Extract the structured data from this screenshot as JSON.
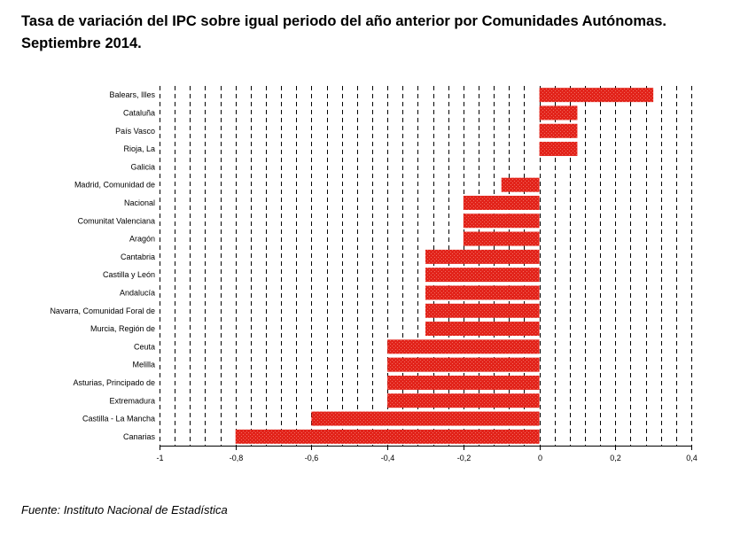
{
  "title_line1": "Tasa de variación del IPC sobre igual periodo del año anterior por Comunidades Autónomas.",
  "title_line2": "Septiembre 2014.",
  "source": "Fuente: Instituto Nacional de Estadística",
  "colors": {
    "bar": "#e2231a",
    "bar_highlight": "#f0695f",
    "grid": "#000000"
  },
  "chart_data": {
    "type": "bar",
    "orientation": "horizontal",
    "categories": [
      "Balears, Illes",
      "Cataluña",
      "País Vasco",
      "Rioja, La",
      "Galicia",
      "Madrid, Comunidad de",
      "Nacional",
      "Comunitat Valenciana",
      "Aragón",
      "Cantabria",
      "Castilla y León",
      "Andalucía",
      "Navarra, Comunidad Foral de",
      "Murcia, Región de",
      "Ceuta",
      "Melilla",
      "Asturias, Principado de",
      "Extremadura",
      "Castilla - La Mancha",
      "Canarias"
    ],
    "values": [
      0.3,
      0.1,
      0.1,
      0.1,
      0.0,
      -0.1,
      -0.2,
      -0.2,
      -0.2,
      -0.3,
      -0.3,
      -0.3,
      -0.3,
      -0.3,
      -0.4,
      -0.4,
      -0.4,
      -0.4,
      -0.6,
      -0.8
    ],
    "xlim": [
      -1,
      0.4
    ],
    "xticks": [
      -1,
      -0.8,
      -0.6,
      -0.4,
      -0.2,
      0,
      0.2,
      0.4
    ],
    "xtick_labels": [
      "-1",
      "-0,8",
      "-0,6",
      "-0,4",
      "-0,2",
      "0",
      "0,2",
      "0,4"
    ],
    "minor_step": 0.04,
    "grid": true,
    "legend": false
  }
}
